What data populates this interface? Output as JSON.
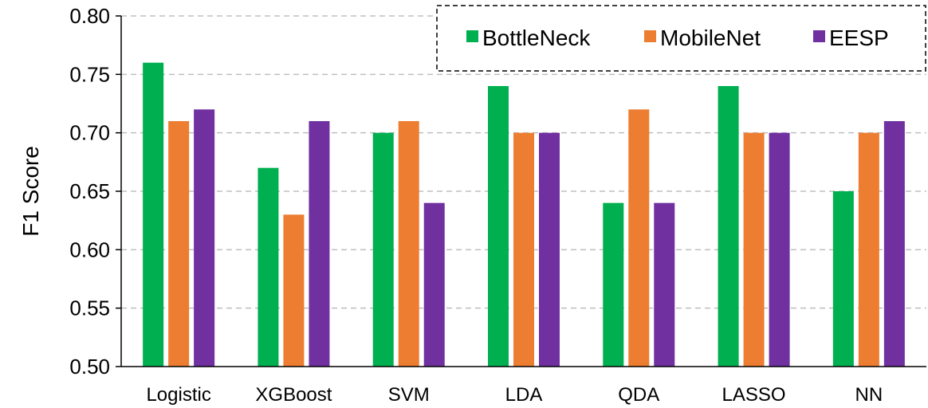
{
  "chart_data": {
    "type": "bar",
    "title": "",
    "xlabel": "",
    "ylabel": "F1 Score",
    "ylim": [
      0.5,
      0.8
    ],
    "yticks": [
      "0.50",
      "0.55",
      "0.60",
      "0.65",
      "0.70",
      "0.75",
      "0.80"
    ],
    "categories": [
      "Logistic",
      "XGBoost",
      "SVM",
      "LDA",
      "QDA",
      "LASSO",
      "NN"
    ],
    "series": [
      {
        "name": "BottleNeck",
        "color": "#00b050",
        "values": [
          0.76,
          0.67,
          0.7,
          0.74,
          0.64,
          0.74,
          0.65
        ]
      },
      {
        "name": "MobileNet",
        "color": "#ed7d31",
        "values": [
          0.71,
          0.63,
          0.71,
          0.7,
          0.72,
          0.7,
          0.7
        ]
      },
      {
        "name": "EESP",
        "color": "#7030a0",
        "values": [
          0.72,
          0.71,
          0.64,
          0.7,
          0.64,
          0.7,
          0.71
        ]
      }
    ],
    "grid": "horizontal dashed",
    "legend": {
      "position": "top-right",
      "border": "dashed"
    }
  }
}
